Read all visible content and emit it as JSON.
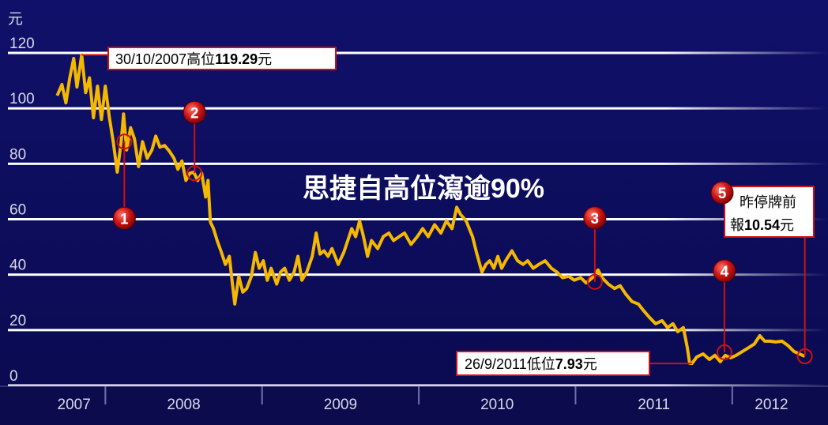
{
  "chart_data": {
    "type": "line",
    "title": "思捷自高位瀉逾90%",
    "y_unit": "元",
    "xlim": [
      2007.6,
      2012.5
    ],
    "xticks": [
      2008,
      2009,
      2010,
      2011,
      2012
    ],
    "x_labels": [
      "2007",
      "2008",
      "2009",
      "2010",
      "2011",
      "2012"
    ],
    "ylim": [
      0,
      120
    ],
    "yticks": [
      0,
      20,
      40,
      60,
      80,
      100,
      120
    ],
    "grid": true,
    "series": [
      {
        "color": "#f5b800",
        "x": [
          2007.693,
          2007.723,
          2007.748,
          2007.773,
          2007.798,
          2007.819,
          2007.849,
          2007.874,
          2007.899,
          2007.924,
          2007.95,
          2007.975,
          2008.0,
          2008.025,
          2008.05,
          2008.076,
          2008.101,
          2008.116,
          2008.136,
          2008.161,
          2008.186,
          2008.212,
          2008.237,
          2008.267,
          2008.297,
          2008.322,
          2008.348,
          2008.378,
          2008.408,
          2008.438,
          2008.463,
          2008.489,
          2008.514,
          2008.539,
          2008.564,
          2008.589,
          2008.615,
          2008.64,
          2008.655,
          2008.67,
          2008.69,
          2008.715,
          2008.741,
          2008.766,
          2008.791,
          2008.811,
          2008.826,
          2008.851,
          2008.877,
          2008.902,
          2008.932,
          2008.957,
          2008.982,
          2009.008,
          2009.033,
          2009.058,
          2009.093,
          2009.118,
          2009.144,
          2009.174,
          2009.204,
          2009.229,
          2009.254,
          2009.285,
          2009.32,
          2009.345,
          2009.37,
          2009.395,
          2009.421,
          2009.446,
          2009.486,
          2009.521,
          2009.547,
          2009.572,
          2009.597,
          2009.622,
          2009.647,
          2009.673,
          2009.698,
          2009.738,
          2009.773,
          2009.809,
          2009.839,
          2009.874,
          2009.909,
          2009.95,
          2009.99,
          2010.025,
          2010.06,
          2010.101,
          2010.141,
          2010.176,
          2010.212,
          2010.242,
          2010.267,
          2010.302,
          2010.343,
          2010.368,
          2010.403,
          2010.428,
          2010.453,
          2010.479,
          2010.504,
          2010.529,
          2010.554,
          2010.594,
          2010.63,
          2010.665,
          2010.695,
          2010.73,
          2010.766,
          2010.806,
          2010.846,
          2010.882,
          2010.917,
          2010.957,
          2010.992,
          2011.033,
          2011.068,
          2011.108,
          2011.144,
          2011.169,
          2011.209,
          2011.249,
          2011.285,
          2011.32,
          2011.36,
          2011.401,
          2011.436,
          2011.471,
          2011.511,
          2011.552,
          2011.587,
          2011.622,
          2011.652,
          2011.688,
          2011.713,
          2011.728,
          2011.743,
          2011.773,
          2011.814,
          2011.854,
          2011.889,
          2011.924,
          2011.955,
          2011.99,
          2012.025,
          2012.066,
          2012.106,
          2012.141,
          2012.176,
          2012.207,
          2012.242,
          2012.277,
          2012.317,
          2012.358,
          2012.393,
          2012.428,
          2012.463
        ],
        "values": [
          104.6,
          108.6,
          102,
          111,
          118,
          107.7,
          119.29,
          105.7,
          111,
          96.6,
          108,
          96,
          108,
          97,
          88,
          77,
          88,
          98,
          85,
          93,
          89,
          79,
          88,
          82,
          85,
          90,
          86,
          86.6,
          84.6,
          82,
          78,
          81,
          74,
          76.6,
          77,
          74,
          76.6,
          68,
          74,
          59,
          56.6,
          52,
          48,
          43.7,
          46.6,
          36.6,
          29.4,
          39.4,
          33.7,
          35,
          39.4,
          48,
          42.3,
          45,
          38,
          42.3,
          36.6,
          40.9,
          42.3,
          38,
          40.9,
          46.6,
          38,
          40.9,
          46.6,
          55,
          47.4,
          48.6,
          46.6,
          49.4,
          43.7,
          48,
          52.3,
          56.6,
          53.7,
          59.4,
          53.7,
          46.6,
          52.3,
          49.4,
          53.7,
          55,
          52.3,
          53.7,
          55,
          50.9,
          53.7,
          56.6,
          53.7,
          58,
          55,
          59.4,
          56.6,
          64.3,
          61.7,
          59.4,
          53.7,
          48,
          40.9,
          43.7,
          45,
          42.3,
          46.6,
          42.3,
          45,
          48.6,
          45,
          43.7,
          45,
          42.3,
          43.7,
          45,
          42.3,
          40.9,
          38.9,
          39.4,
          38,
          38.9,
          37,
          38.9,
          41.7,
          38.9,
          36.6,
          35,
          36,
          33,
          30.3,
          29.4,
          26.9,
          24.6,
          22.3,
          23.4,
          20.9,
          22.3,
          19.4,
          20.9,
          13.7,
          8,
          7.93,
          10.3,
          11.4,
          9.4,
          10.9,
          8.6,
          10.9,
          10,
          10.9,
          12.3,
          13.7,
          15,
          18,
          16,
          16,
          15.7,
          16,
          14.3,
          12.3,
          11.4,
          10.54
        ]
      }
    ],
    "markers": [
      {
        "number": 1,
        "x": 2008.121,
        "y": 88
      },
      {
        "number": 2,
        "x": 2008.569,
        "y": 76.6
      },
      {
        "number": 3,
        "x": 2011.123,
        "y": 37.4
      },
      {
        "number": 4,
        "x": 2011.95,
        "y": 12
      },
      {
        "number": 5,
        "x": 2012.463,
        "y": 10.54
      }
    ],
    "annotations": {
      "peak": {
        "date": "30/10/2007",
        "label": "高位",
        "value": 119.29,
        "unit": "元"
      },
      "low": {
        "date": "26/9/2011",
        "label": "低位",
        "value": 7.93,
        "unit": "元"
      },
      "last": {
        "line1": "昨停牌前",
        "prefix": "報",
        "value": 10.54,
        "unit": "元"
      }
    }
  }
}
